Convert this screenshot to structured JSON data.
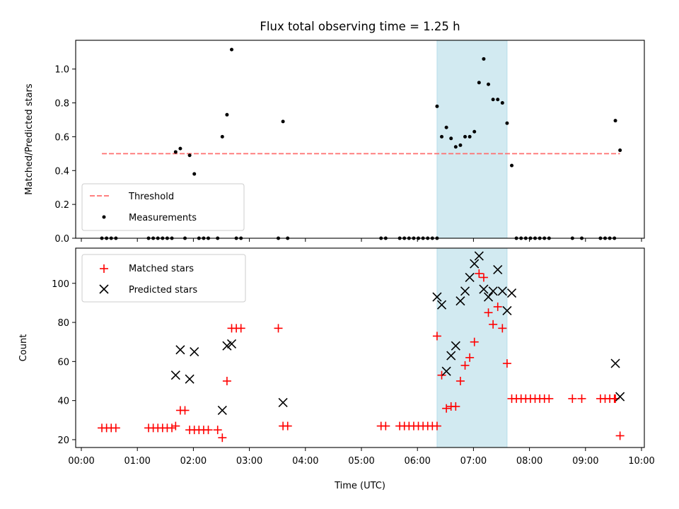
{
  "chart_data": [
    {
      "type": "scatter",
      "title": "Flux total observing time = 1.25 h",
      "xlabel": "",
      "ylabel": "Matched/Predicted stars",
      "xlim": [
        "00:00",
        "10:00"
      ],
      "ylim": [
        0,
        1.17
      ],
      "yticks": [
        0.0,
        0.2,
        0.4,
        0.6,
        0.8,
        1.0
      ],
      "ytick_labels": [
        "0.0",
        "0.2",
        "0.4",
        "0.6",
        "0.8",
        "1.0"
      ],
      "highlight_span": {
        "x_start": "06:21",
        "x_end": "07:36",
        "color": "#add8e6"
      },
      "threshold": {
        "name": "Threshold",
        "y": 0.5,
        "x_start": "00:22",
        "x_end": "09:37",
        "color": "#ff6f6f",
        "style": "dashed"
      },
      "legend_position": "lower-left",
      "series": [
        {
          "name": "Measurements",
          "color": "#000000",
          "marker": "dot",
          "points": [
            [
              "00:22",
              0
            ],
            [
              "00:27",
              0
            ],
            [
              "00:32",
              0
            ],
            [
              "00:37",
              0
            ],
            [
              "01:12",
              0
            ],
            [
              "01:17",
              0
            ],
            [
              "01:22",
              0
            ],
            [
              "01:27",
              0
            ],
            [
              "01:32",
              0
            ],
            [
              "01:37",
              0
            ],
            [
              "01:41",
              0.51
            ],
            [
              "01:46",
              0.53
            ],
            [
              "01:51",
              0
            ],
            [
              "01:56",
              0.49
            ],
            [
              "02:01",
              0.38
            ],
            [
              "02:06",
              0
            ],
            [
              "02:11",
              0
            ],
            [
              "02:16",
              0
            ],
            [
              "02:26",
              0
            ],
            [
              "02:31",
              0.6
            ],
            [
              "02:36",
              0.73
            ],
            [
              "02:41",
              1.115
            ],
            [
              "02:46",
              0
            ],
            [
              "02:51",
              0
            ],
            [
              "03:31",
              0
            ],
            [
              "03:36",
              0.69
            ],
            [
              "03:41",
              0
            ],
            [
              "05:21",
              0
            ],
            [
              "05:26",
              0
            ],
            [
              "05:41",
              0
            ],
            [
              "05:46",
              0
            ],
            [
              "05:51",
              0
            ],
            [
              "05:56",
              0
            ],
            [
              "06:01",
              0
            ],
            [
              "06:06",
              0
            ],
            [
              "06:11",
              0
            ],
            [
              "06:16",
              0
            ],
            [
              "06:21",
              0
            ],
            [
              "06:21",
              0.78
            ],
            [
              "06:26",
              0.6
            ],
            [
              "06:31",
              0.655
            ],
            [
              "06:36",
              0.59
            ],
            [
              "06:41",
              0.54
            ],
            [
              "06:46",
              0.55
            ],
            [
              "06:51",
              0.6
            ],
            [
              "06:56",
              0.6
            ],
            [
              "07:01",
              0.63
            ],
            [
              "07:06",
              0.92
            ],
            [
              "07:11",
              1.06
            ],
            [
              "07:16",
              0.91
            ],
            [
              "07:21",
              0.82
            ],
            [
              "07:26",
              0.82
            ],
            [
              "07:31",
              0.8
            ],
            [
              "07:36",
              0.68
            ],
            [
              "07:41",
              0.43
            ],
            [
              "07:46",
              0
            ],
            [
              "07:51",
              0
            ],
            [
              "07:56",
              0
            ],
            [
              "08:01",
              0
            ],
            [
              "08:06",
              0
            ],
            [
              "08:11",
              0
            ],
            [
              "08:16",
              0
            ],
            [
              "08:21",
              0
            ],
            [
              "08:46",
              0
            ],
            [
              "08:56",
              0
            ],
            [
              "09:16",
              0
            ],
            [
              "09:21",
              0
            ],
            [
              "09:26",
              0
            ],
            [
              "09:31",
              0
            ],
            [
              "09:32",
              0.695
            ],
            [
              "09:37",
              0.52
            ]
          ]
        }
      ]
    },
    {
      "type": "scatter",
      "title": "",
      "xlabel": "Time (UTC)",
      "ylabel": "Count",
      "xlim": [
        "00:00",
        "10:00"
      ],
      "ylim": [
        16,
        118
      ],
      "yticks": [
        20,
        40,
        60,
        80,
        100
      ],
      "ytick_labels": [
        "20",
        "40",
        "60",
        "80",
        "100"
      ],
      "xticks": [
        "00:00",
        "01:00",
        "02:00",
        "03:00",
        "04:00",
        "05:00",
        "06:00",
        "07:00",
        "08:00",
        "09:00",
        "10:00"
      ],
      "xtick_labels": [
        "00:00",
        "01:00",
        "02:00",
        "03:00",
        "04:00",
        "05:00",
        "06:00",
        "07:00",
        "08:00",
        "09:00",
        "10:00"
      ],
      "highlight_span": {
        "x_start": "06:21",
        "x_end": "07:36",
        "color": "#add8e6"
      },
      "legend_position": "upper-left",
      "series": [
        {
          "name": "Matched stars",
          "color": "#ff0000",
          "marker": "plus",
          "points": [
            [
              "00:22",
              26
            ],
            [
              "00:27",
              26
            ],
            [
              "00:32",
              26
            ],
            [
              "00:37",
              26
            ],
            [
              "01:12",
              26
            ],
            [
              "01:17",
              26
            ],
            [
              "01:22",
              26
            ],
            [
              "01:27",
              26
            ],
            [
              "01:32",
              26
            ],
            [
              "01:37",
              26
            ],
            [
              "01:41",
              27
            ],
            [
              "01:46",
              35
            ],
            [
              "01:51",
              35
            ],
            [
              "01:56",
              25
            ],
            [
              "02:01",
              25
            ],
            [
              "02:06",
              25
            ],
            [
              "02:11",
              25
            ],
            [
              "02:16",
              25
            ],
            [
              "02:26",
              25
            ],
            [
              "02:31",
              21
            ],
            [
              "02:36",
              50
            ],
            [
              "02:41",
              77
            ],
            [
              "02:46",
              77
            ],
            [
              "02:51",
              77
            ],
            [
              "03:31",
              77
            ],
            [
              "03:36",
              27
            ],
            [
              "03:41",
              27
            ],
            [
              "05:21",
              27
            ],
            [
              "05:26",
              27
            ],
            [
              "05:41",
              27
            ],
            [
              "05:46",
              27
            ],
            [
              "05:51",
              27
            ],
            [
              "05:56",
              27
            ],
            [
              "06:01",
              27
            ],
            [
              "06:06",
              27
            ],
            [
              "06:11",
              27
            ],
            [
              "06:16",
              27
            ],
            [
              "06:21",
              27
            ],
            [
              "06:21",
              73
            ],
            [
              "06:26",
              53
            ],
            [
              "06:31",
              36
            ],
            [
              "06:36",
              37
            ],
            [
              "06:41",
              37
            ],
            [
              "06:46",
              50
            ],
            [
              "06:51",
              58
            ],
            [
              "06:56",
              62
            ],
            [
              "07:01",
              70
            ],
            [
              "07:06",
              105
            ],
            [
              "07:11",
              103
            ],
            [
              "07:16",
              85
            ],
            [
              "07:21",
              79
            ],
            [
              "07:26",
              88
            ],
            [
              "07:31",
              77
            ],
            [
              "07:36",
              59
            ],
            [
              "07:41",
              41
            ],
            [
              "07:46",
              41
            ],
            [
              "07:51",
              41
            ],
            [
              "07:56",
              41
            ],
            [
              "08:01",
              41
            ],
            [
              "08:06",
              41
            ],
            [
              "08:11",
              41
            ],
            [
              "08:16",
              41
            ],
            [
              "08:21",
              41
            ],
            [
              "08:46",
              41
            ],
            [
              "08:56",
              41
            ],
            [
              "09:16",
              41
            ],
            [
              "09:21",
              41
            ],
            [
              "09:26",
              41
            ],
            [
              "09:31",
              41
            ],
            [
              "09:32",
              41
            ],
            [
              "09:37",
              22
            ]
          ]
        },
        {
          "name": "Predicted stars",
          "color": "#000000",
          "marker": "x",
          "points": [
            [
              "01:41",
              53
            ],
            [
              "01:46",
              66
            ],
            [
              "01:56",
              51
            ],
            [
              "02:01",
              65
            ],
            [
              "02:31",
              35
            ],
            [
              "02:36",
              68
            ],
            [
              "02:41",
              69
            ],
            [
              "03:36",
              39
            ],
            [
              "06:21",
              93
            ],
            [
              "06:26",
              89
            ],
            [
              "06:31",
              55
            ],
            [
              "06:36",
              63
            ],
            [
              "06:41",
              68
            ],
            [
              "06:46",
              91
            ],
            [
              "06:51",
              96
            ],
            [
              "06:56",
              103
            ],
            [
              "07:01",
              110
            ],
            [
              "07:06",
              114
            ],
            [
              "07:11",
              97
            ],
            [
              "07:16",
              93
            ],
            [
              "07:21",
              96
            ],
            [
              "07:26",
              107
            ],
            [
              "07:31",
              96
            ],
            [
              "07:36",
              86
            ],
            [
              "07:41",
              95
            ],
            [
              "09:32",
              59
            ],
            [
              "09:37",
              42
            ]
          ]
        }
      ]
    }
  ]
}
